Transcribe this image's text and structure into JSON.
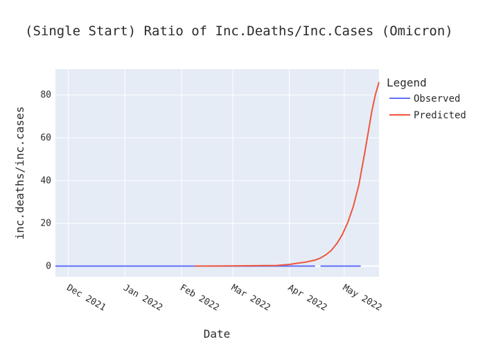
{
  "chart_data": {
    "type": "line",
    "title": "(Single Start) Ratio of Inc.Deaths/Inc.Cases (Omicron)",
    "xlabel": "Date",
    "ylabel": "inc.deaths/inc.cases",
    "x_range": [
      "2021-11-24",
      "2022-05-20"
    ],
    "xticks": [
      {
        "date": "2021-12-01",
        "label": "Dec 2021"
      },
      {
        "date": "2022-01-01",
        "label": "Jan 2022"
      },
      {
        "date": "2022-02-01",
        "label": "Feb 2022"
      },
      {
        "date": "2022-03-01",
        "label": "Mar 2022"
      },
      {
        "date": "2022-04-01",
        "label": "Apr 2022"
      },
      {
        "date": "2022-05-01",
        "label": "May 2022"
      }
    ],
    "ylim": [
      -5,
      92
    ],
    "yticks": [
      0,
      20,
      40,
      60,
      80
    ],
    "grid": true,
    "legend": {
      "title": "Legend",
      "position": "right"
    },
    "series": [
      {
        "name": "Observed",
        "color": "#636efa",
        "segments": [
          {
            "x": [
              "2021-11-24",
              "2022-04-15"
            ],
            "y": [
              0.0,
              0.0
            ]
          },
          {
            "x": [
              "2022-04-18",
              "2022-05-10"
            ],
            "y": [
              0.0,
              0.0
            ]
          }
        ]
      },
      {
        "name": "Predicted",
        "color": "#ef553b",
        "x": [
          "2022-02-08",
          "2022-02-20",
          "2022-03-01",
          "2022-03-15",
          "2022-03-25",
          "2022-04-01",
          "2022-04-05",
          "2022-04-10",
          "2022-04-15",
          "2022-04-18",
          "2022-04-21",
          "2022-04-24",
          "2022-04-27",
          "2022-04-30",
          "2022-05-03",
          "2022-05-06",
          "2022-05-09",
          "2022-05-12",
          "2022-05-14",
          "2022-05-16",
          "2022-05-18",
          "2022-05-20"
        ],
        "y": [
          0.0,
          0.05,
          0.1,
          0.2,
          0.3,
          0.8,
          1.3,
          1.9,
          2.8,
          3.8,
          5.3,
          7.4,
          10.6,
          14.8,
          20.5,
          28.0,
          38.0,
          52.0,
          62.0,
          72.0,
          80.0,
          86.0
        ]
      }
    ]
  }
}
